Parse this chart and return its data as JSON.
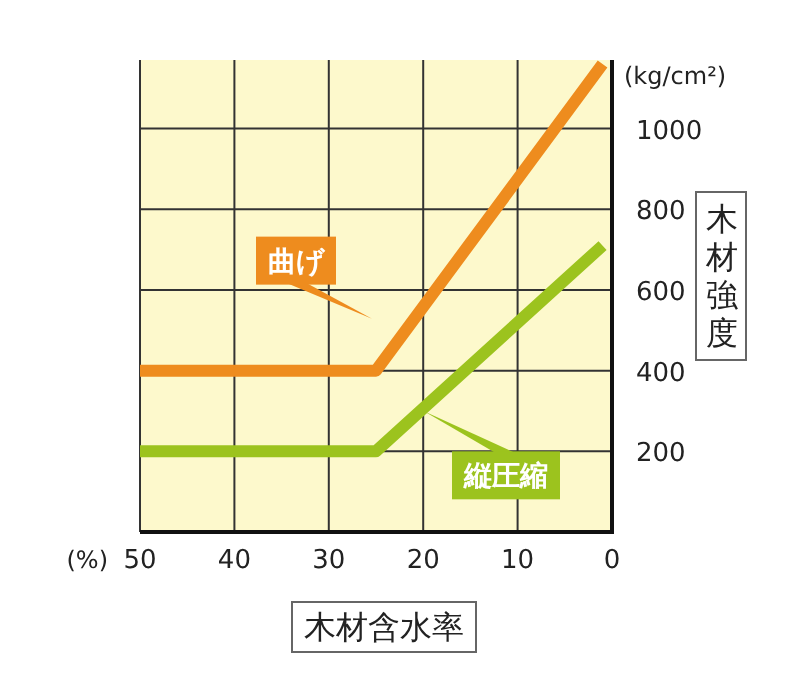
{
  "chart_data": {
    "type": "line",
    "xlabel": "木材含水率",
    "ylabel": "木材強度",
    "annotations": [
      "(kg/cm²)",
      "(%)"
    ],
    "x": [
      50,
      25,
      1
    ],
    "series": [
      {
        "name": "曲げ",
        "color": "#ee8c1e",
        "values": [
          400,
          400,
          1160
        ]
      },
      {
        "name": "縦圧縮",
        "color": "#9cc31e",
        "values": [
          200,
          200,
          710
        ]
      }
    ],
    "xlim": [
      50,
      0
    ],
    "ylim": [
      0,
      1170
    ],
    "xticks": [
      50,
      40,
      30,
      20,
      10,
      0
    ],
    "yticks": [
      200,
      400,
      600,
      800,
      1000
    ],
    "grid": true
  }
}
